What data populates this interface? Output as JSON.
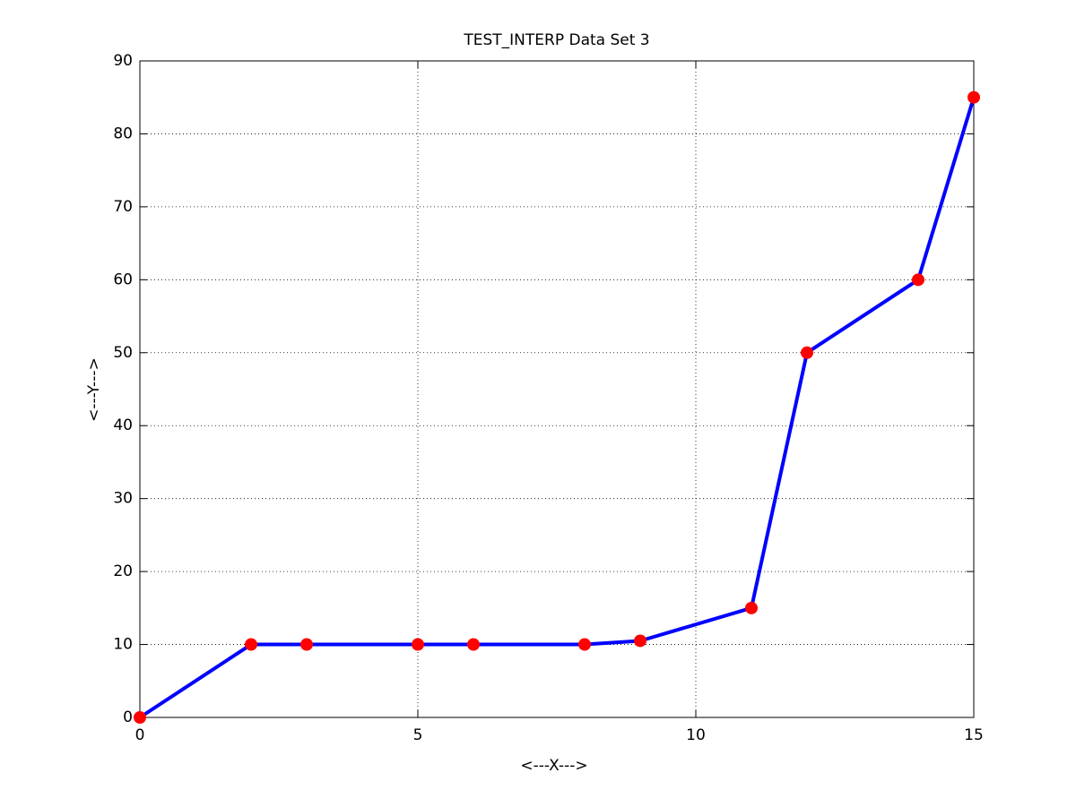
{
  "chart_data": {
    "type": "line",
    "title": "TEST_INTERP Data Set 3",
    "xlabel": "<---X--->",
    "ylabel": "<---Y--->",
    "x": [
      0,
      2,
      3,
      5,
      6,
      8,
      9,
      11,
      12,
      14,
      15
    ],
    "values": [
      0,
      10,
      10,
      10,
      10,
      10,
      10.5,
      15,
      50,
      60,
      85
    ],
    "line_color": "#0000ff",
    "marker_color": "#ff0000",
    "xlim": [
      0,
      15
    ],
    "xticks": [
      0,
      5,
      10,
      15
    ],
    "ylim": [
      0,
      90
    ],
    "yticks": [
      0,
      10,
      20,
      30,
      40,
      50,
      60,
      70,
      80,
      90
    ],
    "grid": true
  }
}
